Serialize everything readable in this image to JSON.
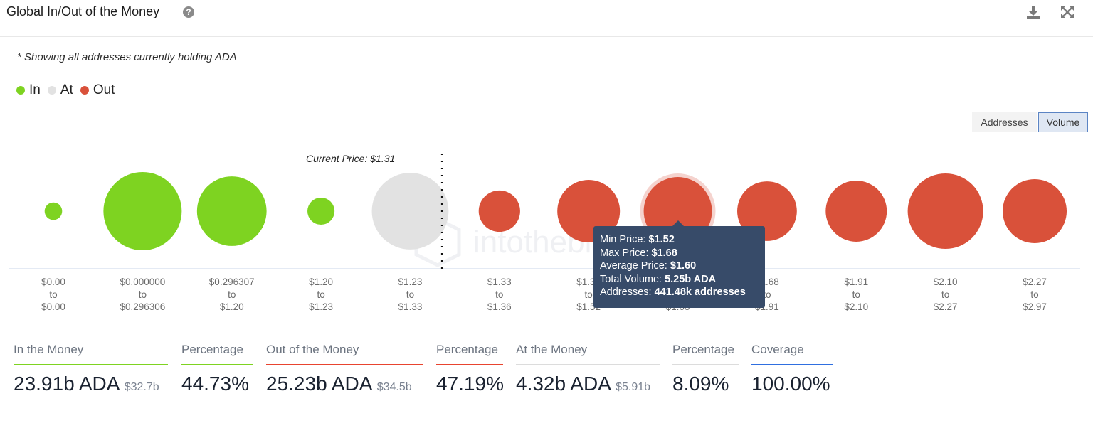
{
  "header": {
    "title": "Global In/Out of the Money",
    "help_icon": "question-circle-icon",
    "download_icon": "download-icon",
    "expand_icon": "fullscreen-icon"
  },
  "note": "* Showing all addresses currently holding ADA",
  "legend": [
    {
      "label": "In",
      "color": "#7ed321"
    },
    {
      "label": "At",
      "color": "#e2e2e2"
    },
    {
      "label": "Out",
      "color": "#d9513a"
    }
  ],
  "toggle": {
    "options": [
      "Addresses",
      "Volume"
    ],
    "selected": "Volume"
  },
  "colors": {
    "in": "#7ed321",
    "at": "#e2e2e2",
    "out": "#d9513a",
    "tooltip_bg": "#374b69",
    "coverage": "#2f6fe0",
    "axis": "#c9d6ea"
  },
  "chart_data": {
    "type": "bubble",
    "title": "Global In/Out of the Money",
    "metric": "Volume",
    "current_price_label": "Current Price: $1.31",
    "current_price": 1.31,
    "bins": [
      {
        "from": "$0.00",
        "to": "$0.00",
        "status": "in",
        "relative_size": 0.05
      },
      {
        "from": "$0.000000",
        "to": "$0.296306",
        "status": "in",
        "relative_size": 1.0
      },
      {
        "from": "$0.296307",
        "to": "$1.20",
        "status": "in",
        "relative_size": 0.79
      },
      {
        "from": "$1.20",
        "to": "$1.23",
        "status": "in",
        "relative_size": 0.12
      },
      {
        "from": "$1.23",
        "to": "$1.33",
        "status": "at",
        "relative_size": 0.96
      },
      {
        "from": "$1.33",
        "to": "$1.36",
        "status": "out",
        "relative_size": 0.28
      },
      {
        "from": "$1.36",
        "to": "$1.52",
        "status": "out",
        "relative_size": 0.64
      },
      {
        "from": "$1.52",
        "to": "$1.68",
        "status": "out",
        "relative_size": 0.76,
        "highlighted": true
      },
      {
        "from": "$1.68",
        "to": "$1.91",
        "status": "out",
        "relative_size": 0.58
      },
      {
        "from": "$1.91",
        "to": "$2.10",
        "status": "out",
        "relative_size": 0.61
      },
      {
        "from": "$2.10",
        "to": "$2.27",
        "status": "out",
        "relative_size": 0.93
      },
      {
        "from": "$2.27",
        "to": "$2.97",
        "status": "out",
        "relative_size": 0.67
      }
    ],
    "to_word": "to"
  },
  "tooltip": {
    "rows": [
      {
        "label": "Min Price: ",
        "value": "$1.52"
      },
      {
        "label": "Max Price: ",
        "value": "$1.68"
      },
      {
        "label": "Average Price: ",
        "value": "$1.60"
      },
      {
        "label": "Total Volume: ",
        "value": "5.25b ADA"
      },
      {
        "label": "Addresses: ",
        "value": "441.48k addresses"
      }
    ]
  },
  "watermark": "intotheblock",
  "stats": [
    {
      "label": "In the Money",
      "value": "23.91b ADA",
      "sub": "$32.7b",
      "color": "#7ed321"
    },
    {
      "label": "Percentage",
      "value": "44.73%",
      "sub": "",
      "color": "#7ed321"
    },
    {
      "label": "Out of the Money",
      "value": "25.23b ADA",
      "sub": "$34.5b",
      "color": "#e8442f"
    },
    {
      "label": "Percentage",
      "value": "47.19%",
      "sub": "",
      "color": "#e8442f"
    },
    {
      "label": "At the Money",
      "value": "4.32b ADA",
      "sub": "$5.91b",
      "color": "#dcdcdc"
    },
    {
      "label": "Percentage",
      "value": "8.09%",
      "sub": "",
      "color": "#dcdcdc"
    },
    {
      "label": "Coverage",
      "value": "100.00%",
      "sub": "",
      "color": "#2f6fe0"
    }
  ]
}
